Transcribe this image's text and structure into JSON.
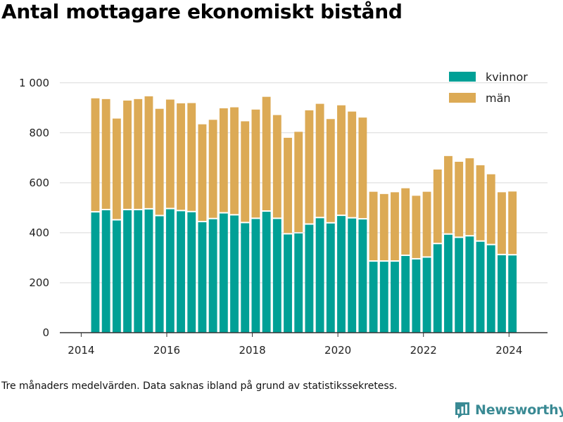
{
  "title": "Antal mottagare ekonomiskt bistånd",
  "footnote": "Tre månaders medelvärden. Data saknas ibland på grund av statistikssekretess.",
  "brand": {
    "name": "Newsworthy",
    "icon": "newsworthy-logo-icon"
  },
  "colors": {
    "kvinnor": "#00a096",
    "man": "#dcaa55",
    "grid": "#d9d9d9",
    "axis": "#333333"
  },
  "chart_data": {
    "type": "bar",
    "stacked": true,
    "title": "Antal mottagare ekonomiskt bistånd",
    "xlabel": "",
    "ylabel": "",
    "ylim": [
      0,
      1050
    ],
    "xlim": [
      2013.5,
      2024.9
    ],
    "y_ticks": [
      0,
      200,
      400,
      600,
      800,
      1000
    ],
    "y_tick_labels": [
      "0",
      "200",
      "400",
      "600",
      "800",
      "1 000"
    ],
    "x_ticks": [
      2014,
      2016,
      2018,
      2020,
      2022,
      2024
    ],
    "x_tick_labels": [
      "2014",
      "2016",
      "2018",
      "2020",
      "2022",
      "2024"
    ],
    "legend": "top-right",
    "grid": true,
    "x": [
      2014.33,
      2014.58,
      2014.83,
      2015.08,
      2015.33,
      2015.58,
      2015.83,
      2016.08,
      2016.33,
      2016.58,
      2016.83,
      2017.08,
      2017.33,
      2017.58,
      2017.83,
      2018.08,
      2018.33,
      2018.58,
      2018.83,
      2019.08,
      2019.33,
      2019.58,
      2019.83,
      2020.08,
      2020.33,
      2020.58,
      2020.83,
      2021.08,
      2021.33,
      2021.58,
      2021.83,
      2022.08,
      2022.33,
      2022.58,
      2022.83,
      2023.08,
      2023.33,
      2023.58,
      2023.83,
      2024.08
    ],
    "series": [
      {
        "name": "kvinnor",
        "color": "#00a096",
        "values": [
          481,
          490,
          449,
          490,
          490,
          493,
          466,
          494,
          486,
          482,
          442,
          454,
          477,
          469,
          438,
          455,
          484,
          455,
          393,
          397,
          432,
          458,
          437,
          467,
          457,
          453,
          284,
          284,
          284,
          307,
          293,
          300,
          354,
          392,
          379,
          385,
          364,
          350,
          310,
          309
        ]
      },
      {
        "name": "män",
        "color": "#dcaa55",
        "values": [
          457,
          445,
          408,
          439,
          445,
          453,
          430,
          439,
          432,
          437,
          392,
          398,
          421,
          433,
          408,
          438,
          460,
          416,
          387,
          407,
          458,
          458,
          418,
          443,
          428,
          408,
          280,
          271,
          278,
          271,
          255,
          264,
          299,
          315,
          305,
          313,
          306,
          284,
          252,
          256
        ]
      }
    ]
  }
}
